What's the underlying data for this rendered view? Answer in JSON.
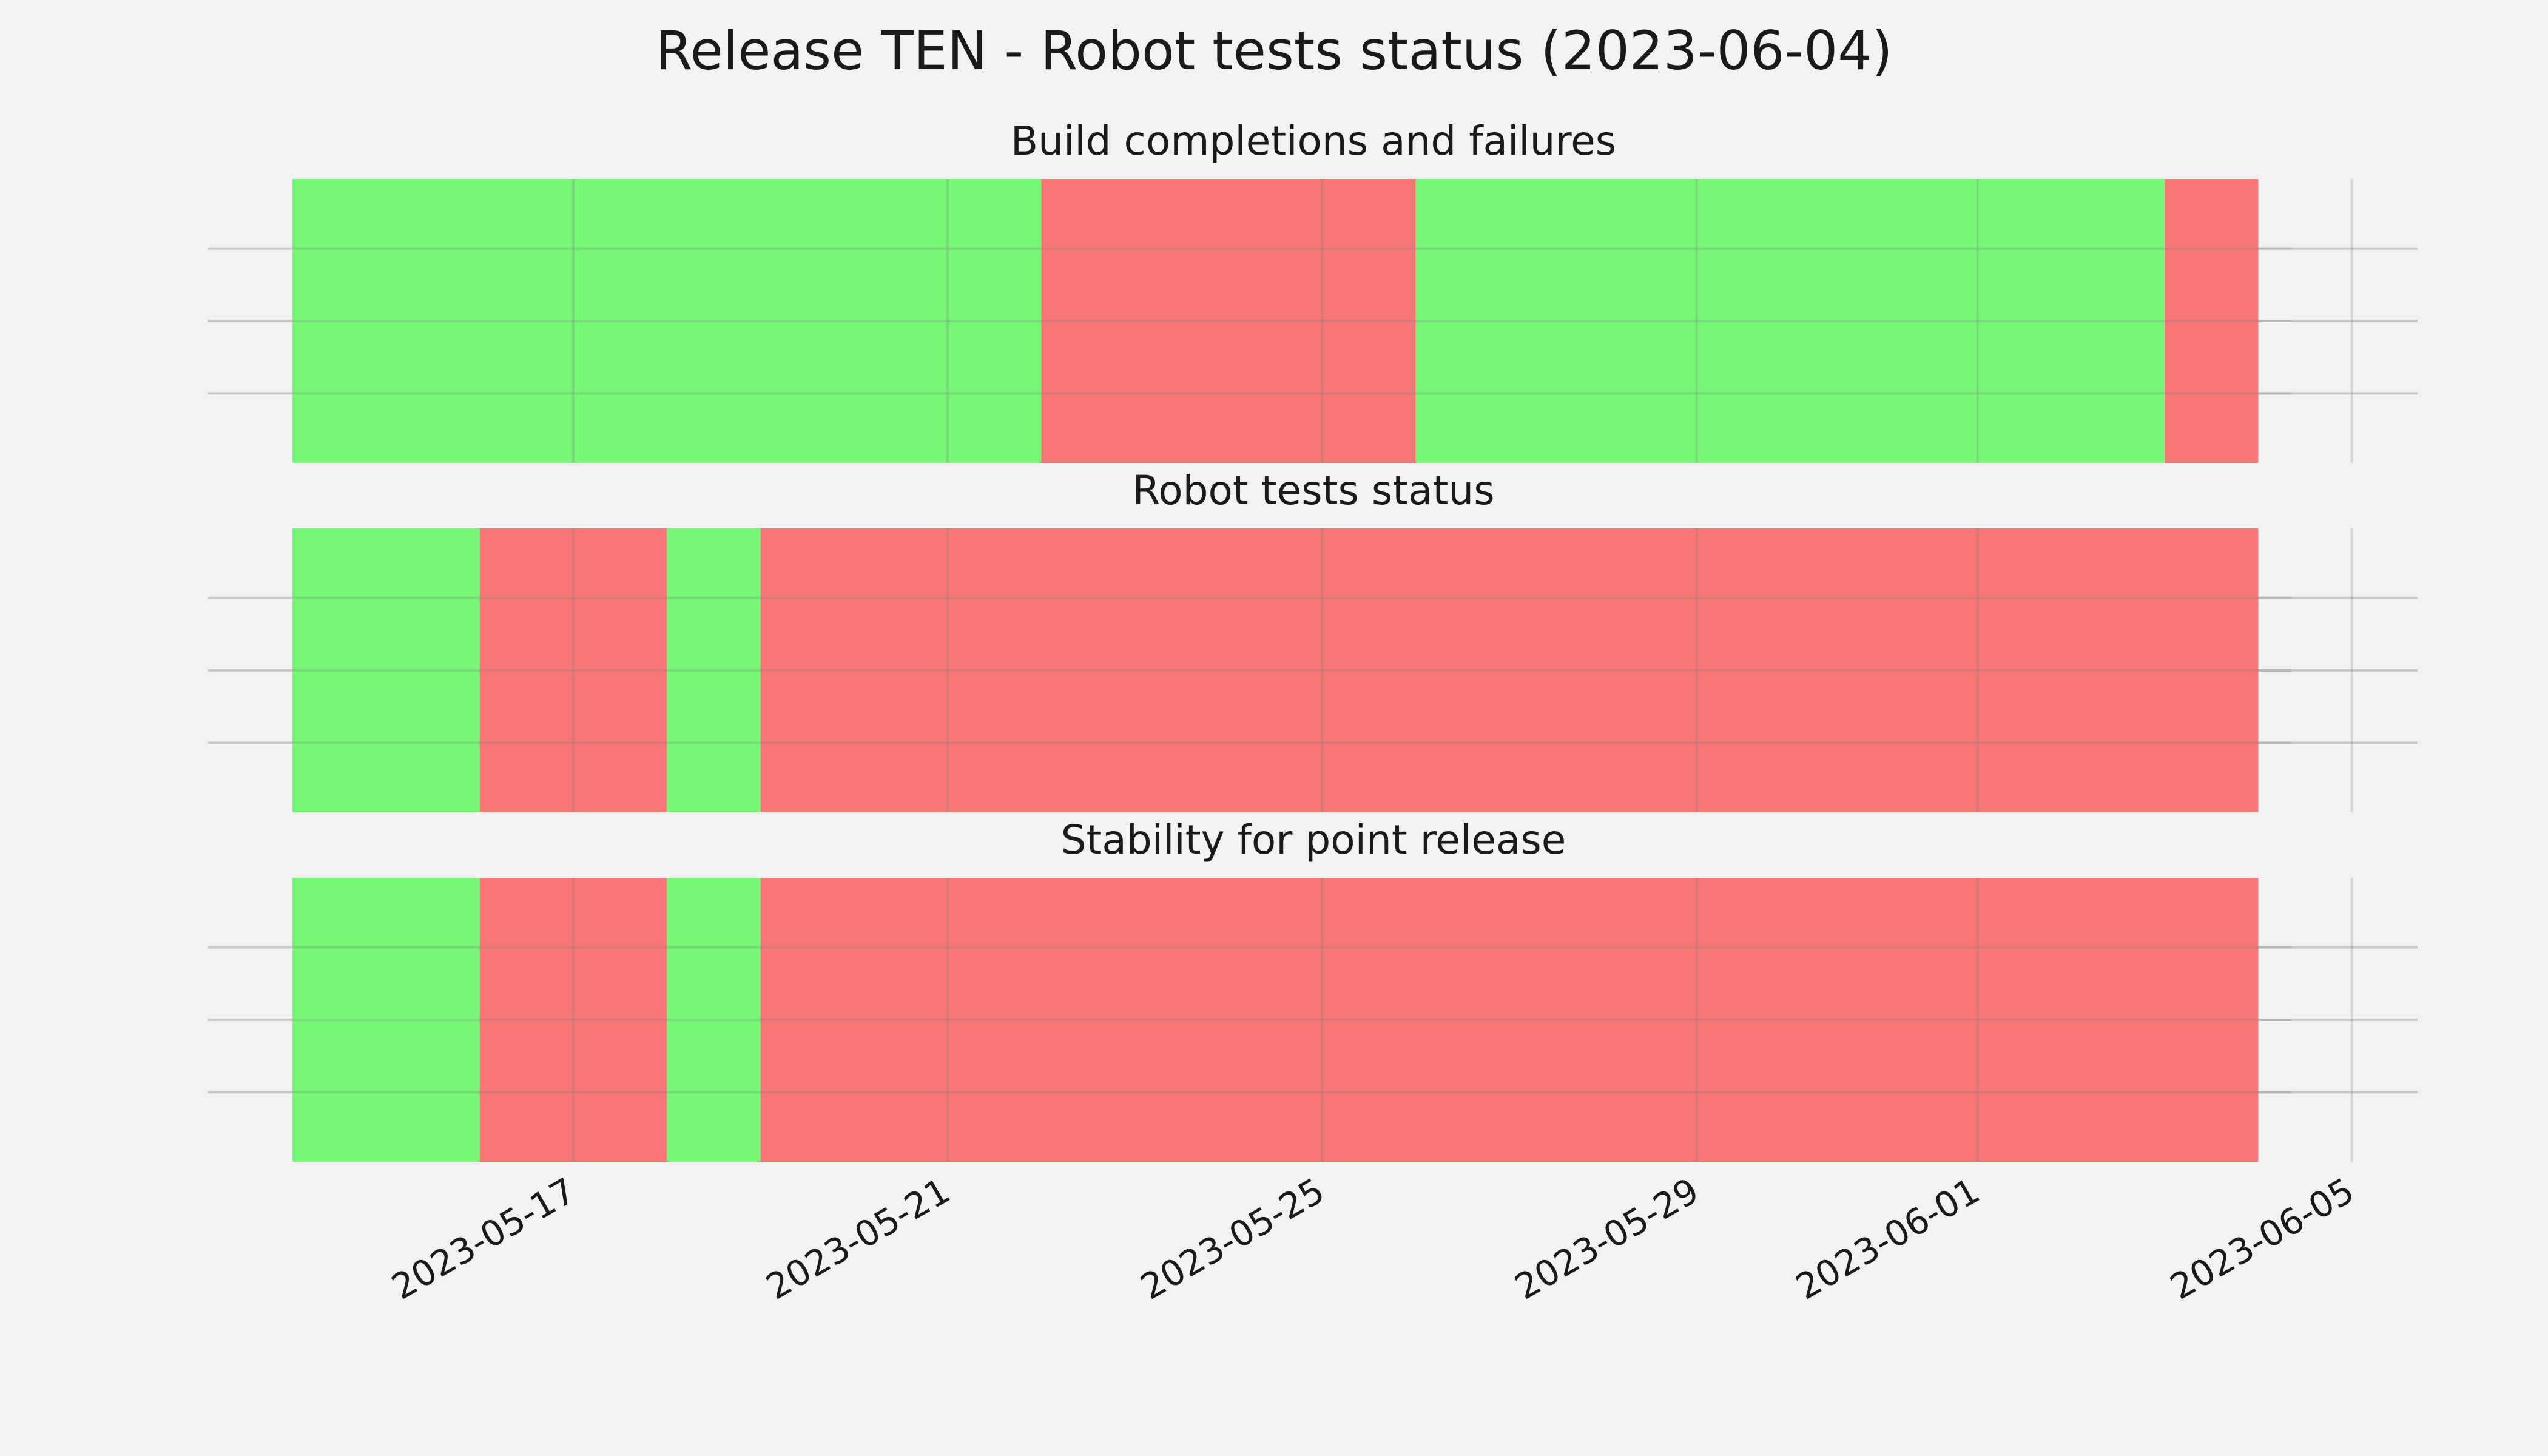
{
  "chart_data": {
    "type": "timeline",
    "title": "Release TEN - Robot tests status (2023-06-04)",
    "colors": {
      "pass": "#76f776",
      "fail": "#f77676",
      "background": "#f2f2f2",
      "grid": "#c8c8c8"
    },
    "x_axis": {
      "type": "date",
      "range": [
        "2023-05-13",
        "2023-06-05"
      ],
      "ticks": [
        "2023-05-17",
        "2023-05-21",
        "2023-05-25",
        "2023-05-29",
        "2023-06-01",
        "2023-06-05"
      ]
    },
    "grid": true,
    "panels": [
      {
        "title": "Build completions and failures",
        "segments": [
          {
            "start": "2023-05-14",
            "end": "2023-05-22",
            "status": "pass"
          },
          {
            "start": "2023-05-22",
            "end": "2023-05-26",
            "status": "fail"
          },
          {
            "start": "2023-05-26",
            "end": "2023-06-03",
            "status": "pass"
          },
          {
            "start": "2023-06-03",
            "end": "2023-06-04",
            "status": "fail"
          }
        ]
      },
      {
        "title": "Robot tests status",
        "segments": [
          {
            "start": "2023-05-14",
            "end": "2023-05-16",
            "status": "pass"
          },
          {
            "start": "2023-05-16",
            "end": "2023-05-18",
            "status": "fail"
          },
          {
            "start": "2023-05-18",
            "end": "2023-05-19",
            "status": "pass"
          },
          {
            "start": "2023-05-19",
            "end": "2023-06-04",
            "status": "fail"
          }
        ]
      },
      {
        "title": "Stability for point release",
        "segments": [
          {
            "start": "2023-05-14",
            "end": "2023-05-16",
            "status": "pass"
          },
          {
            "start": "2023-05-16",
            "end": "2023-05-18",
            "status": "fail"
          },
          {
            "start": "2023-05-18",
            "end": "2023-05-19",
            "status": "pass"
          },
          {
            "start": "2023-05-19",
            "end": "2023-06-04",
            "status": "fail"
          }
        ]
      }
    ]
  }
}
